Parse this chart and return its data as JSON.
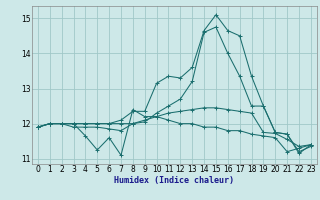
{
  "xlabel": "Humidex (Indice chaleur)",
  "ylabel": "",
  "background_color": "#cde8e8",
  "grid_color": "#a0c8c8",
  "line_color": "#1a6e6e",
  "xlim": [
    -0.5,
    23.5
  ],
  "ylim": [
    10.85,
    15.35
  ],
  "yticks": [
    11,
    12,
    13,
    14,
    15
  ],
  "xticks": [
    0,
    1,
    2,
    3,
    4,
    5,
    6,
    7,
    8,
    9,
    10,
    11,
    12,
    13,
    14,
    15,
    16,
    17,
    18,
    19,
    20,
    21,
    22,
    23
  ],
  "series": [
    [
      11.9,
      12.0,
      12.0,
      12.0,
      11.65,
      11.25,
      11.6,
      11.1,
      12.4,
      12.2,
      12.2,
      12.1,
      12.0,
      12.0,
      11.9,
      11.9,
      11.8,
      11.8,
      11.7,
      11.65,
      11.6,
      11.2,
      11.3,
      11.4
    ],
    [
      11.9,
      12.0,
      12.0,
      11.9,
      11.9,
      11.9,
      11.85,
      11.8,
      12.0,
      12.1,
      12.2,
      12.3,
      12.35,
      12.4,
      12.45,
      12.45,
      12.4,
      12.35,
      12.3,
      11.75,
      11.72,
      11.55,
      11.35,
      11.4
    ],
    [
      11.9,
      12.0,
      12.0,
      12.0,
      12.0,
      12.0,
      12.0,
      12.0,
      12.0,
      12.05,
      12.3,
      12.5,
      12.7,
      13.2,
      14.6,
      14.75,
      14.0,
      13.35,
      12.5,
      12.5,
      11.75,
      11.7,
      11.2,
      11.35
    ],
    [
      11.9,
      12.0,
      12.0,
      12.0,
      12.0,
      12.0,
      12.0,
      12.1,
      12.35,
      12.35,
      13.15,
      13.35,
      13.3,
      13.6,
      14.65,
      15.1,
      14.65,
      14.5,
      13.35,
      12.5,
      11.75,
      11.7,
      11.15,
      11.4
    ]
  ]
}
